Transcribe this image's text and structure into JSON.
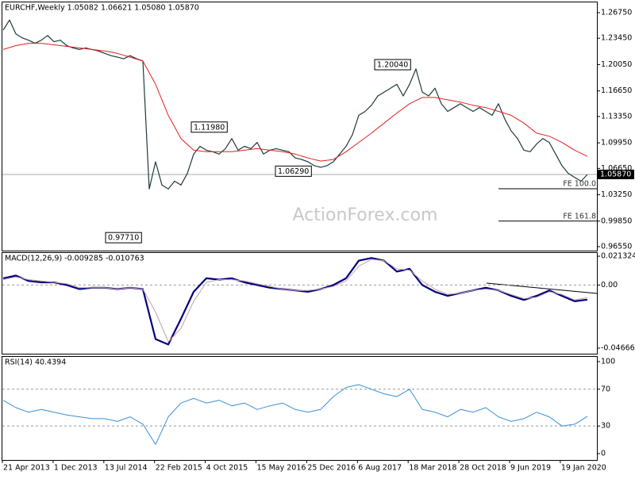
{
  "chart_data": [
    {
      "type": "line",
      "title": "EURCHF,Weekly 1.05082 1.06621 1.05080 1.05870",
      "watermark": "ActionForex.com",
      "ylim": [
        0.9604,
        1.2818
      ],
      "yticks": [
        {
          "value": 1.2675,
          "label": "1.26750"
        },
        {
          "value": 1.2345,
          "label": "1.23450"
        },
        {
          "value": 1.2005,
          "label": "1.20050"
        },
        {
          "value": 1.1665,
          "label": "1.16650"
        },
        {
          "value": 1.1335,
          "label": "1.13350"
        },
        {
          "value": 1.0995,
          "label": "1.09950"
        },
        {
          "value": 1.0665,
          "label": "1.06650"
        },
        {
          "value": 1.0325,
          "label": "1.03250"
        },
        {
          "value": 0.9985,
          "label": "0.99850"
        },
        {
          "value": 0.9655,
          "label": "0.96550"
        }
      ],
      "series": [
        {
          "name": "EURCHF",
          "color": "#1f3a3a",
          "width": 1.2,
          "values": [
            1.245,
            1.258,
            1.24,
            1.235,
            1.232,
            1.228,
            1.232,
            1.238,
            1.23,
            1.232,
            1.225,
            1.222,
            1.22,
            1.222,
            1.22,
            1.218,
            1.215,
            1.212,
            1.21,
            1.208,
            1.212,
            1.208,
            1.205,
            1.04,
            1.075,
            1.045,
            1.04,
            1.05,
            1.045,
            1.06,
            1.085,
            1.095,
            1.09,
            1.088,
            1.085,
            1.092,
            1.105,
            1.09,
            1.095,
            1.092,
            1.1,
            1.085,
            1.09,
            1.092,
            1.09,
            1.088,
            1.08,
            1.078,
            1.075,
            1.07,
            1.068,
            1.07,
            1.075,
            1.085,
            1.095,
            1.11,
            1.135,
            1.14,
            1.148,
            1.16,
            1.165,
            1.17,
            1.175,
            1.16,
            1.175,
            1.195,
            1.165,
            1.16,
            1.17,
            1.15,
            1.14,
            1.145,
            1.15,
            1.145,
            1.14,
            1.145,
            1.14,
            1.135,
            1.15,
            1.13,
            1.115,
            1.105,
            1.09,
            1.088,
            1.098,
            1.105,
            1.1,
            1.085,
            1.07,
            1.06,
            1.055,
            1.05,
            1.0587
          ]
        },
        {
          "name": "SMA",
          "color": "#e02020",
          "width": 1,
          "values": [
            1.22,
            1.225,
            1.228,
            1.228,
            1.226,
            1.224,
            1.222,
            1.22,
            1.218,
            1.215,
            1.21,
            1.205,
            1.175,
            1.135,
            1.105,
            1.09,
            1.088,
            1.088,
            1.088,
            1.09,
            1.092,
            1.09,
            1.088,
            1.085,
            1.08,
            1.076,
            1.078,
            1.088,
            1.1,
            1.112,
            1.125,
            1.138,
            1.15,
            1.158,
            1.158,
            1.155,
            1.152,
            1.148,
            1.145,
            1.14,
            1.135,
            1.125,
            1.112,
            1.108,
            1.1,
            1.09,
            1.082
          ]
        }
      ],
      "annotations": [
        {
          "value": 1.2004,
          "label": "1.20040"
        },
        {
          "value": 1.1198,
          "label": "1.11980"
        },
        {
          "value": 1.0629,
          "label": "1.06290"
        },
        {
          "value": 0.9771,
          "label": "0.97710"
        }
      ],
      "levels": [
        {
          "value": 1.0402,
          "label": "FE 100.0"
        },
        {
          "value": 0.9985,
          "label": "FE 161.8"
        }
      ],
      "last_price": {
        "value": 1.0587,
        "label": "1.05870"
      }
    },
    {
      "type": "line",
      "title": "MACD(12,26,9) -0.009285 -0.010763",
      "ylim": [
        -0.0508,
        0.0243
      ],
      "yticks": [
        0.021324,
        {
          "value": 0,
          "label": "0.00"
        },
        -0.046663
      ],
      "reference_lines": [
        0
      ],
      "series": [
        {
          "name": "MACD",
          "color": "#000080",
          "width": 2.2,
          "values": [
            0.005,
            0.007,
            0.003,
            0.002,
            0.002,
            0,
            -0.003,
            -0.002,
            -0.002,
            -0.003,
            -0.002,
            -0.003,
            -0.04,
            -0.044,
            -0.025,
            -0.005,
            0.005,
            0.004,
            0.005,
            0.002,
            0,
            -0.002,
            -0.003,
            -0.004,
            -0.005,
            -0.003,
            0,
            0.005,
            0.018,
            0.02,
            0.018,
            0.01,
            0.012,
            0,
            -0.005,
            -0.008,
            -0.006,
            -0.004,
            -0.002,
            -0.004,
            -0.008,
            -0.011,
            -0.008,
            -0.004,
            -0.008,
            -0.012,
            -0.010763
          ]
        },
        {
          "name": "Signal",
          "color": "#c8a0a0",
          "width": 1,
          "values": [
            0.004,
            0.006,
            0.004,
            0.003,
            0.002,
            0.001,
            -0.002,
            -0.002,
            -0.002,
            -0.003,
            -0.002,
            -0.003,
            -0.02,
            -0.042,
            -0.032,
            -0.012,
            0.002,
            0.004,
            0.004,
            0.003,
            0.001,
            -0.001,
            -0.003,
            -0.004,
            -0.004,
            -0.003,
            -0.001,
            0.003,
            0.014,
            0.019,
            0.018,
            0.012,
            0.011,
            0.003,
            -0.003,
            -0.007,
            -0.006,
            -0.004,
            -0.003,
            -0.004,
            -0.007,
            -0.01,
            -0.009,
            -0.005,
            -0.007,
            -0.011,
            -0.009285
          ]
        }
      ]
    },
    {
      "type": "line",
      "title": "RSI(14) 40.4394",
      "ylim": [
        -6.9,
        106
      ],
      "yticks": [
        100,
        70,
        30,
        0
      ],
      "reference_lines": [
        70,
        30
      ],
      "series": [
        {
          "name": "RSI",
          "color": "#3a8fd8",
          "width": 1,
          "values": [
            58,
            50,
            45,
            48,
            45,
            42,
            40,
            38,
            38,
            35,
            40,
            32,
            10,
            40,
            55,
            60,
            55,
            58,
            52,
            55,
            48,
            52,
            55,
            48,
            45,
            48,
            62,
            72,
            75,
            70,
            65,
            62,
            70,
            48,
            45,
            40,
            48,
            45,
            50,
            40,
            35,
            38,
            45,
            40,
            30,
            32,
            40.4394
          ]
        }
      ],
      "x_labels": [
        "21 Apr 2013",
        "1 Dec 2013",
        "13 Jul 2014",
        "22 Feb 2015",
        "4 Oct 2015",
        "15 May 2016",
        "25 Dec 2016",
        "6 Aug 2017",
        "18 Mar 2018",
        "28 Oct 2018",
        "9 Jun 2019",
        "19 Jan 2020"
      ]
    }
  ]
}
